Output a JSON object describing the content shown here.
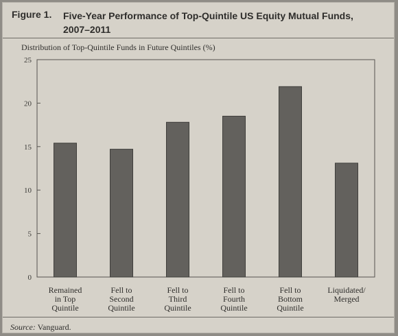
{
  "figure": {
    "label": "Figure 1.",
    "title_line1": "Five-Year Performance of Top-Quintile US Equity Mutual Funds,",
    "title_line2": "2007–2011",
    "source_label": "Source:",
    "source_text": " Vanguard."
  },
  "chart_data": {
    "type": "bar",
    "title": "Five-Year Performance of Top-Quintile US Equity Mutual Funds, 2007–2011",
    "ylabel": "Distribution of Top-Quintile Funds in Future Quintiles (%)",
    "xlabel": "",
    "ylim": [
      0,
      25
    ],
    "yticks": [
      0,
      5,
      10,
      15,
      20,
      25
    ],
    "categories": [
      [
        "Remained",
        "in Top",
        "Quintile"
      ],
      [
        "Fell to",
        "Second",
        "Quintile"
      ],
      [
        "Fell to",
        "Third",
        "Quintile"
      ],
      [
        "Fell to",
        "Fourth",
        "Quintile"
      ],
      [
        "Fell to",
        "Bottom",
        "Quintile"
      ],
      [
        "Liquidated/",
        "Merged"
      ]
    ],
    "values": [
      15.4,
      14.7,
      17.8,
      18.5,
      21.9,
      13.1
    ],
    "grid": false,
    "legend": "none",
    "bar_color": "#63615d"
  }
}
